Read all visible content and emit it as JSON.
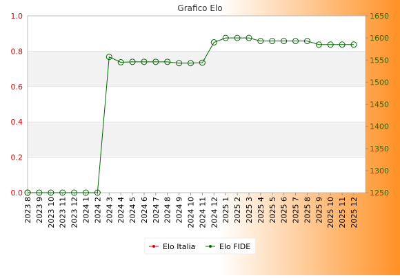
{
  "chart_data": {
    "type": "line",
    "title": "Grafico Elo",
    "x": [
      "2023 8",
      "2023 9",
      "2023 10",
      "2023 11",
      "2023 12",
      "2024 1",
      "2024 2",
      "2024 3",
      "2024 4",
      "2024 5",
      "2024 6",
      "2024 7",
      "2024 8",
      "2024 9",
      "2024 10",
      "2024 11",
      "2024 12",
      "2025 1",
      "2025 2",
      "2025 3",
      "2025 4",
      "2025 5",
      "2025 6",
      "2025 7",
      "2025 8",
      "2025 9",
      "2025 10",
      "2025 11",
      "2025 12"
    ],
    "y_left": {
      "range": [
        0,
        1
      ],
      "ticks": [
        "0.0",
        "0.2",
        "0.4",
        "0.6",
        "0.8",
        "1.0"
      ],
      "color": "#dd0000"
    },
    "y_right": {
      "range": [
        1250,
        1650
      ],
      "ticks": [
        "1250",
        "1300",
        "1350",
        "1400",
        "1450",
        "1500",
        "1550",
        "1600",
        "1650"
      ],
      "color": "#336600"
    },
    "series": [
      {
        "name": "Elo Italia",
        "axis": "left",
        "color": "#dd0000",
        "values": [
          0,
          null,
          null,
          null,
          null,
          null,
          null,
          null,
          null,
          null,
          null,
          null,
          null,
          null,
          null,
          null,
          null,
          null,
          null,
          null,
          null,
          null,
          null,
          null,
          null,
          null,
          null,
          null,
          null
        ]
      },
      {
        "name": "Elo FIDE",
        "axis": "right",
        "color": "#006600",
        "values": [
          1250,
          1250,
          1250,
          1250,
          1250,
          1250,
          1250,
          1557,
          1545,
          1546,
          1546,
          1546,
          1546,
          1543,
          1543,
          1544,
          1590,
          1600,
          1600,
          1600,
          1593,
          1593,
          1593,
          1593,
          1593,
          1585,
          1585,
          1585,
          1585
        ]
      }
    ],
    "grid": true,
    "legend": "bottom-center"
  }
}
